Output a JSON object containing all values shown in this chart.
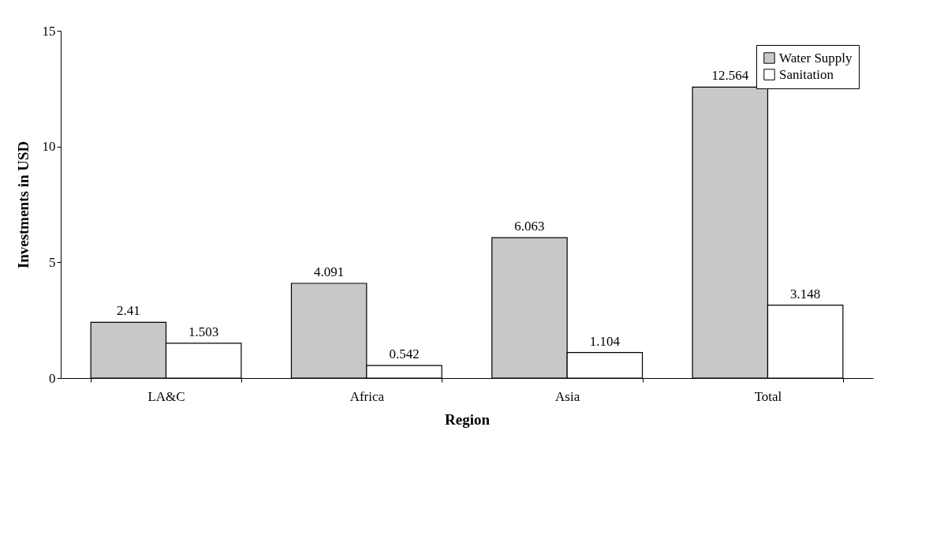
{
  "chart_data": {
    "type": "bar",
    "xlabel": "Region",
    "ylabel": "Investments in USD",
    "categories": [
      "LA&C",
      "Africa",
      "Asia",
      "Total"
    ],
    "series": [
      {
        "name": "Water Supply",
        "color": "#c8c8c8",
        "values": [
          2.41,
          4.091,
          6.063,
          12.564
        ]
      },
      {
        "name": "Sanitation",
        "color": "#ffffff",
        "values": [
          1.503,
          0.542,
          1.104,
          3.148
        ]
      }
    ],
    "ylim": [
      0,
      15
    ],
    "yticks": [
      0,
      5,
      10,
      15
    ],
    "data_labels": true,
    "legend": "top right"
  }
}
